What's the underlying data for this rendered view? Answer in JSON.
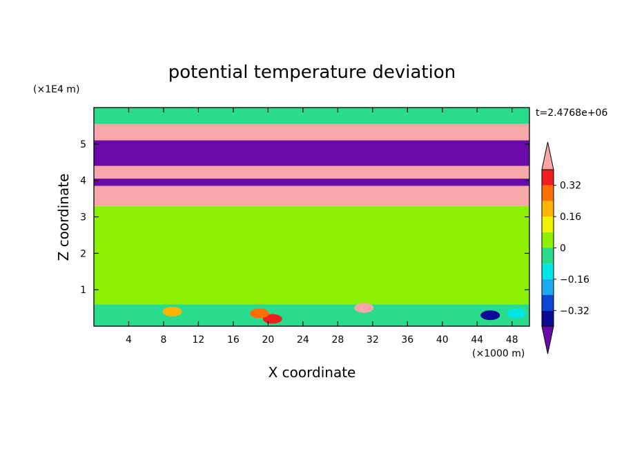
{
  "chart_data": {
    "type": "heatmap",
    "title": "potential temperature deviation",
    "xlabel": "X coordinate",
    "ylabel": "Z coordinate",
    "x_unit": "(×1000 m)",
    "y_unit": "(×1E4 m)",
    "time_label": "t=2.4768e+06",
    "xlim": [
      0,
      50
    ],
    "ylim": [
      0,
      6
    ],
    "x_ticks": [
      4,
      8,
      12,
      16,
      20,
      24,
      28,
      32,
      36,
      40,
      44,
      48
    ],
    "x_tick_labels": [
      "4",
      "8",
      "12",
      "16",
      "20",
      "24",
      "28",
      "32",
      "36",
      "40",
      "44",
      "48"
    ],
    "y_ticks": [
      1,
      2,
      3,
      4,
      5
    ],
    "y_tick_labels": [
      "1",
      "2",
      "3",
      "4",
      "5"
    ],
    "colorbar": {
      "levels": [
        -0.4,
        -0.32,
        -0.24,
        -0.16,
        -0.08,
        0,
        0.08,
        0.16,
        0.24,
        0.32,
        0.4
      ],
      "labeled_values": [
        0.32,
        0.16,
        0,
        -0.16,
        -0.32
      ],
      "labels": [
        "0.32",
        "0.16",
        "0",
        "−0.16",
        "−0.32"
      ],
      "colors_low_to_high": [
        "#6a0aa8",
        "#0a0a96",
        "#0a46d2",
        "#1eaaf0",
        "#00e6e6",
        "#28dc8c",
        "#8cf000",
        "#f0f000",
        "#ffb400",
        "#ff6e00",
        "#f01e1e",
        "#f7a7a7"
      ],
      "under_color": "#6a0aa8",
      "over_color": "#f7a7a7",
      "extend": "both"
    },
    "layers": [
      {
        "z_range": [
          5.55,
          6.0
        ],
        "value": -0.02
      },
      {
        "z_range": [
          5.1,
          5.55
        ],
        "value": 0.41
      },
      {
        "z_range": [
          4.95,
          5.1
        ],
        "value": -0.41
      },
      {
        "z_range": [
          4.4,
          4.95
        ],
        "value": -0.41
      },
      {
        "z_range": [
          4.05,
          4.4
        ],
        "value": 0.41
      },
      {
        "z_range": [
          3.85,
          4.05
        ],
        "value": -0.41
      },
      {
        "z_range": [
          3.55,
          3.85
        ],
        "value": 0.41
      },
      {
        "z_range": [
          3.3,
          3.55
        ],
        "value": 0.41
      },
      {
        "z_range": [
          0.6,
          3.3
        ],
        "value": 0.05
      },
      {
        "z_range": [
          0.0,
          0.6
        ],
        "value": -0.05
      }
    ],
    "features": [
      {
        "x": 20.5,
        "z": 0.2,
        "value": 0.36
      },
      {
        "x": 19.0,
        "z": 0.35,
        "value": 0.3
      },
      {
        "x": 9.0,
        "z": 0.4,
        "value": 0.18
      },
      {
        "x": 31.0,
        "z": 0.5,
        "value": 0.41
      },
      {
        "x": 45.5,
        "z": 0.3,
        "value": -0.34
      },
      {
        "x": 48.5,
        "z": 0.35,
        "value": -0.1
      },
      {
        "x": 14.0,
        "z": 4.65,
        "value": -0.41
      },
      {
        "x": 46.0,
        "z": 4.75,
        "value": -0.41
      }
    ]
  }
}
